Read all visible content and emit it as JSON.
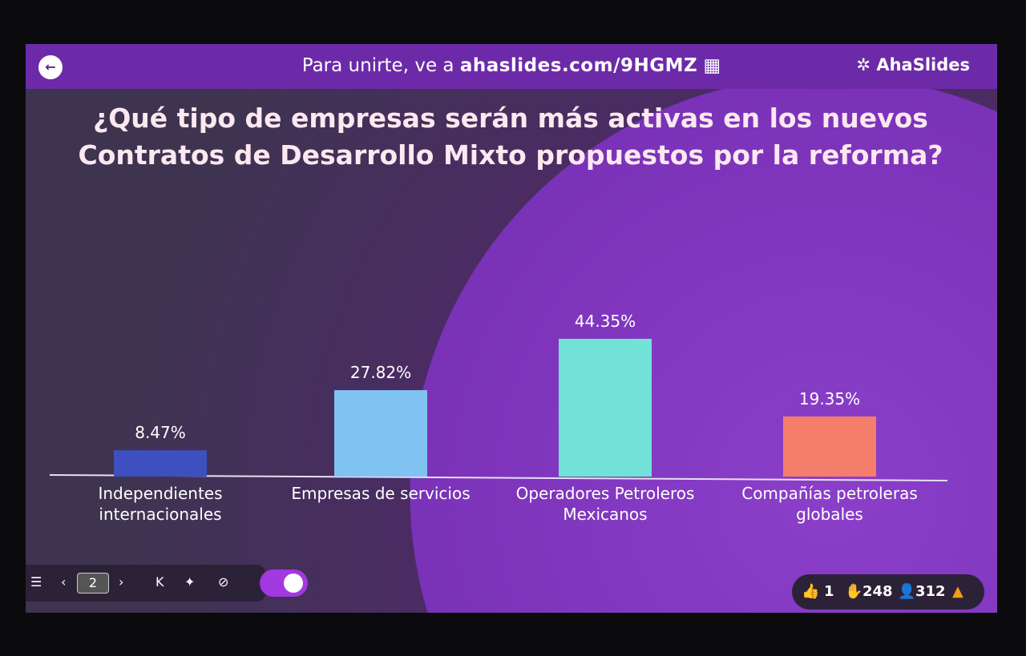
{
  "header": {
    "join_text": "Para unirte, ve a",
    "join_url": "ahaslides.com/9HGMZ",
    "brand": "AhaSlides"
  },
  "chart_data": {
    "type": "bar",
    "title": "¿Qué tipo de empresas serán más activas en los nuevos Contratos de Desarrollo Mixto propuestos por la reforma?",
    "categories": [
      "Independientes internacionales",
      "Empresas de servicios",
      "Operadores Petroleros Mexicanos",
      "Compañías petroleras globales"
    ],
    "values": [
      8.47,
      27.82,
      44.35,
      19.35
    ],
    "value_labels": [
      "8.47%",
      "27.82%",
      "44.35%",
      "19.35%"
    ],
    "colors": [
      "#3e4fc0",
      "#80c3f2",
      "#72e2d8",
      "#f57d6c"
    ]
  },
  "toolbar": {
    "slide": "2"
  },
  "stats": {
    "likes": "1",
    "reactions": "248",
    "participants": "312"
  }
}
